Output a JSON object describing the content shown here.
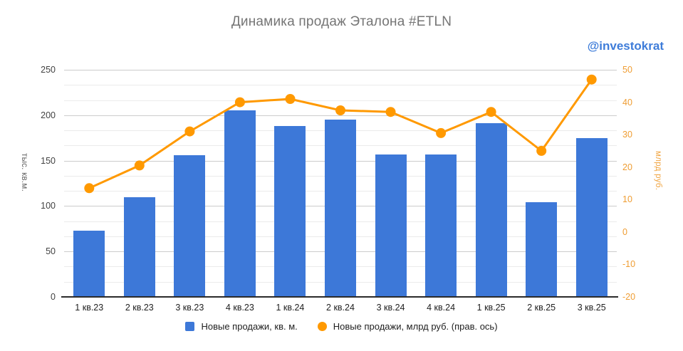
{
  "title": "Динамика продаж Эталона #ETLN",
  "watermark": "@investokrat",
  "colors": {
    "bar": "#3d78d8",
    "line": "#ff9900",
    "right_axis_text": "#ef9d33",
    "title_text": "#757575",
    "watermark_text": "#3e7cd9"
  },
  "chart_data": {
    "type": "bar",
    "subtype": "bar-and-line-dual-axis",
    "title": "Динамика продаж Эталона #ETLN",
    "categories": [
      "1 кв.23",
      "2 кв.23",
      "3 кв.23",
      "4 кв.23",
      "1 кв.24",
      "2 кв.24",
      "3 кв.24",
      "4 кв.24",
      "1 кв.25",
      "2 кв.25",
      "3 кв.25"
    ],
    "series": [
      {
        "name": "Новые продажи, кв. м.",
        "type": "bar",
        "axis": "left",
        "color": "#3d78d8",
        "values": [
          73,
          110,
          156,
          205,
          188,
          195,
          157,
          157,
          191,
          104,
          175
        ]
      },
      {
        "name": "Новые продажи, млрд руб. (прав. ось)",
        "type": "line",
        "axis": "right",
        "color": "#ff9900",
        "values": [
          13.5,
          20.5,
          31,
          40,
          41,
          37.5,
          37,
          30.5,
          37,
          25,
          47
        ]
      }
    ],
    "left_axis": {
      "title": "тыс. кв.м.",
      "min": 0,
      "max": 250,
      "ticks": [
        0,
        50,
        100,
        150,
        200,
        250
      ]
    },
    "right_axis": {
      "title": "млрд руб.",
      "min": -20,
      "max": 50,
      "ticks": [
        -20,
        -10,
        0,
        10,
        20,
        30,
        40,
        50
      ]
    },
    "grid": true,
    "legend_position": "bottom"
  }
}
